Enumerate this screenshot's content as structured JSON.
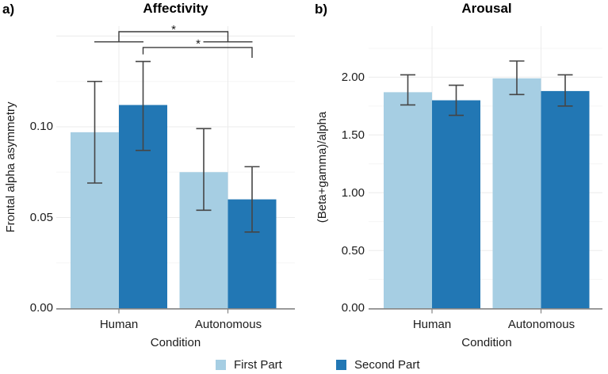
{
  "legend": {
    "items": [
      {
        "label": "First Part",
        "color": "#a6cee3"
      },
      {
        "label": "Second Part",
        "color": "#2277b4"
      }
    ]
  },
  "chart_data": [
    {
      "id": "affectivity",
      "type": "bar",
      "panel_label": "a)",
      "title": "Affectivity",
      "xlabel": "Condition",
      "ylabel": "Frontal alpha asymmetry",
      "categories": [
        "Human",
        "Autonomous"
      ],
      "series": [
        {
          "name": "First Part",
          "color": "#a6cee3",
          "values": [
            0.097,
            0.075
          ],
          "error_high": [
            0.125,
            0.099
          ],
          "error_low": [
            0.069,
            0.054
          ]
        },
        {
          "name": "Second Part",
          "color": "#2277b4",
          "values": [
            0.112,
            0.06
          ],
          "error_high": [
            0.136,
            0.078
          ],
          "error_low": [
            0.087,
            0.042
          ]
        }
      ],
      "ylim": [
        0,
        0.155
      ],
      "yticks": [
        {
          "v": 0.0,
          "label": "0.00"
        },
        {
          "v": 0.05,
          "label": "0.05"
        },
        {
          "v": 0.1,
          "label": "0.10"
        }
      ],
      "grid": true,
      "legend_position": "bottom",
      "significance": [
        {
          "label": "*",
          "compares": "Human vs Autonomous (group means)",
          "group_span": true,
          "y": 0.1524,
          "tick_y": 0.1468,
          "span_half_width_units": 0.0,
          "x1": {
            "category": 0,
            "series": null
          },
          "x2": {
            "category": 1,
            "series": null
          }
        },
        {
          "label": "*",
          "compares": "Second Part: Human vs Autonomous",
          "group_span": false,
          "y": 0.1437,
          "tick_y1": 0.1399,
          "tick_y2": 0.138,
          "x1": {
            "category": 0,
            "series": 1
          },
          "x2": {
            "category": 1,
            "series": 1
          }
        }
      ]
    },
    {
      "id": "arousal",
      "type": "bar",
      "panel_label": "b)",
      "title": "Arousal",
      "xlabel": "Condition",
      "ylabel": "(Beta+gamma)/alpha",
      "categories": [
        "Human",
        "Autonomous"
      ],
      "series": [
        {
          "name": "First Part",
          "color": "#a6cee3",
          "values": [
            1.87,
            1.99
          ],
          "error_high": [
            2.02,
            2.14
          ],
          "error_low": [
            1.76,
            1.85
          ]
        },
        {
          "name": "Second Part",
          "color": "#2277b4",
          "values": [
            1.8,
            1.88
          ],
          "error_high": [
            1.93,
            2.02
          ],
          "error_low": [
            1.67,
            1.75
          ]
        }
      ],
      "ylim": [
        0,
        2.44
      ],
      "yticks": [
        {
          "v": 0.0,
          "label": "0.00"
        },
        {
          "v": 0.5,
          "label": "0.50"
        },
        {
          "v": 1.0,
          "label": "1.00"
        },
        {
          "v": 1.5,
          "label": "1.50"
        },
        {
          "v": 2.0,
          "label": "2.00"
        }
      ],
      "grid": true,
      "legend_position": "bottom",
      "significance": []
    }
  ]
}
